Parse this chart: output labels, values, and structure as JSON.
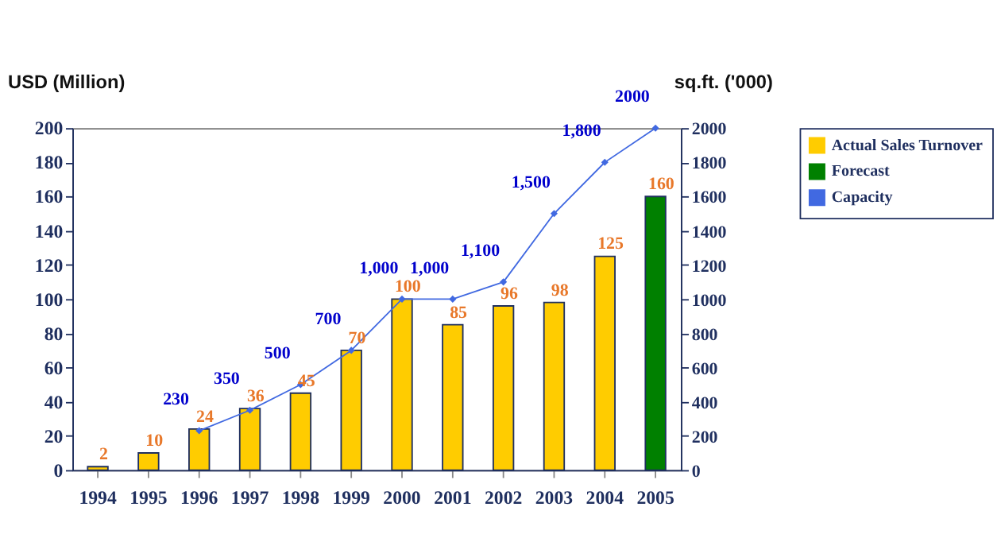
{
  "chart_data": {
    "type": "bar",
    "categories": [
      "1994",
      "1995",
      "1996",
      "1997",
      "1998",
      "1999",
      "2000",
      "2001",
      "2002",
      "2003",
      "2004",
      "2005"
    ],
    "ylabel": "USD (Million)",
    "y2label": "sq.ft. ('000)",
    "ylim": [
      0,
      200
    ],
    "yticks": [
      0,
      20,
      40,
      60,
      80,
      100,
      120,
      140,
      160,
      180,
      200
    ],
    "y2lim": [
      0,
      2000
    ],
    "y2ticks": [
      0,
      200,
      400,
      600,
      800,
      1000,
      1200,
      1400,
      1600,
      1800,
      2000
    ],
    "series": [
      {
        "name": "Actual Sales Turnover",
        "color": "#ffcc00",
        "values": [
          2,
          10,
          24,
          36,
          45,
          70,
          100,
          85,
          96,
          98,
          125,
          null
        ],
        "value_labels": [
          "2",
          "10",
          "24",
          "36",
          "45",
          "70",
          "100",
          "85",
          "96",
          "98",
          "125",
          null
        ]
      },
      {
        "name": "Forecast",
        "color": "#008000",
        "values": [
          null,
          null,
          null,
          null,
          null,
          null,
          null,
          null,
          null,
          null,
          null,
          160
        ],
        "value_labels": [
          null,
          null,
          null,
          null,
          null,
          null,
          null,
          null,
          null,
          null,
          null,
          "160"
        ]
      },
      {
        "name": "Capacity",
        "type": "line",
        "axis": "y2",
        "color": "#4169e1",
        "values": [
          null,
          null,
          230,
          350,
          500,
          700,
          1000,
          1000,
          1100,
          1500,
          1800,
          2000
        ],
        "value_labels": [
          null,
          null,
          "230",
          "350",
          "500",
          "700",
          "1,000",
          "1,000",
          "1,100",
          "1,500",
          "1,800",
          "2000"
        ]
      }
    ],
    "marker": "diamond",
    "grid": false,
    "legend": "right"
  }
}
